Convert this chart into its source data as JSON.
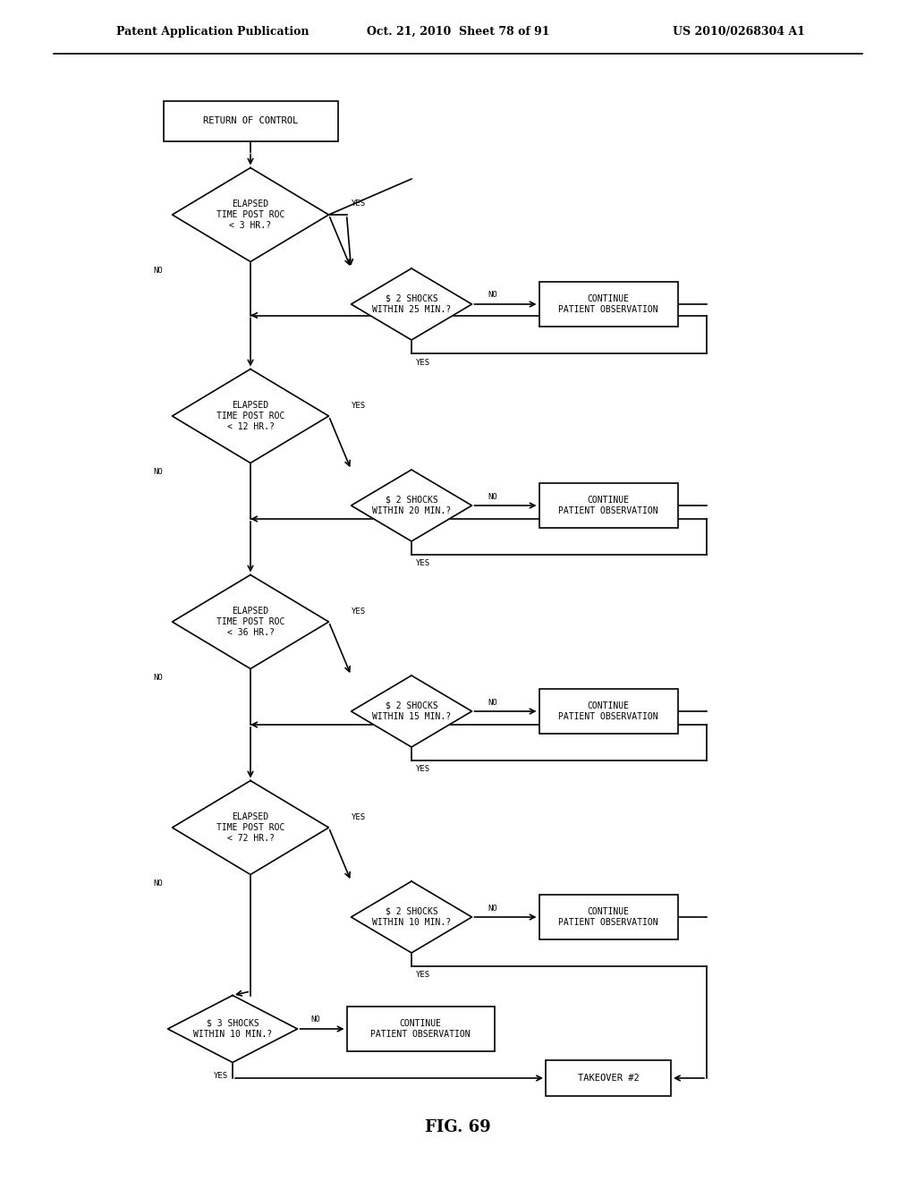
{
  "header_left": "Patent Application Publication",
  "header_mid": "Oct. 21, 2010  Sheet 78 of 91",
  "header_right": "US 2010/0268304 A1",
  "fig_label": "FIG. 69",
  "background": "#ffffff",
  "lw": 1.2,
  "fontsize_label": 7.0,
  "fontsize_yesno": 6.5,
  "fontsize_header": 9,
  "fontsize_fig": 13
}
